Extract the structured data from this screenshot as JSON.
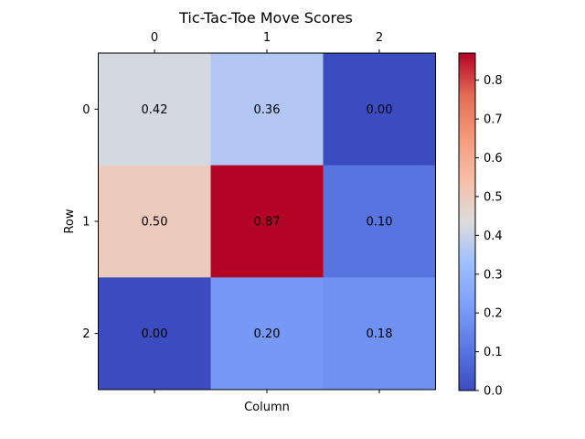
{
  "chart_data": {
    "type": "heatmap",
    "title": "Tic-Tac-Toe Move Scores",
    "xlabel": "Column",
    "ylabel": "Row",
    "x_categories": [
      "0",
      "1",
      "2"
    ],
    "y_categories": [
      "0",
      "1",
      "2"
    ],
    "values": [
      [
        0.42,
        0.36,
        0.0
      ],
      [
        0.5,
        0.87,
        0.1
      ],
      [
        0.0,
        0.2,
        0.18
      ]
    ],
    "value_labels": [
      [
        "0.42",
        "0.36",
        "0.00"
      ],
      [
        "0.50",
        "0.87",
        "0.10"
      ],
      [
        "0.00",
        "0.20",
        "0.18"
      ]
    ],
    "colormap": "coolwarm",
    "vmin": 0.0,
    "vmax": 0.87,
    "colorbar_ticks": [
      "0.0",
      "0.1",
      "0.2",
      "0.3",
      "0.4",
      "0.5",
      "0.6",
      "0.7",
      "0.8"
    ],
    "x_ticks_position": "top",
    "grid": false
  }
}
